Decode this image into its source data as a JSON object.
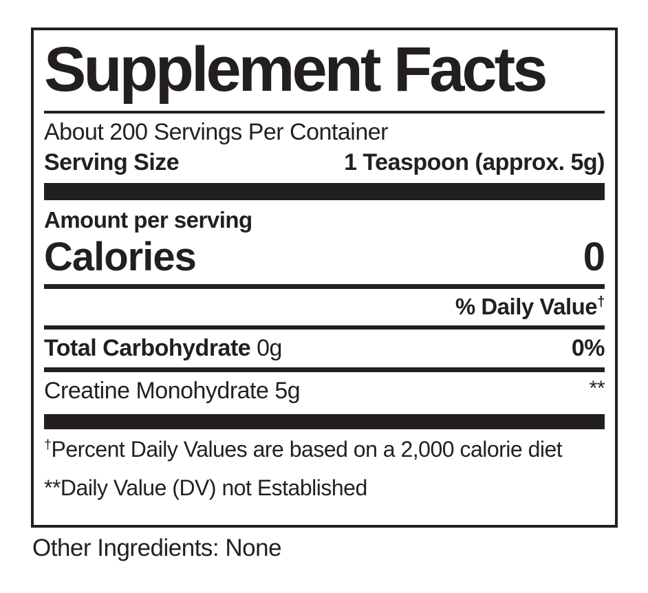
{
  "label": {
    "title": "Supplement Facts",
    "servings_per_container": "About 200 Servings Per Container",
    "serving_size": {
      "label": "Serving Size",
      "value": "1 Teaspoon (approx. 5g)"
    },
    "amount_per_serving_label": "Amount per serving",
    "calories": {
      "label": "Calories",
      "value": "0"
    },
    "daily_value_header": {
      "text": "% Daily Value",
      "symbol": "†"
    },
    "nutrient_rows": [
      {
        "name": "Total Carbohydrate",
        "amount": "0g",
        "daily_value": "0%"
      },
      {
        "name": "Creatine Monohydrate",
        "amount": "5g",
        "daily_value": "**"
      }
    ],
    "footnotes": [
      {
        "symbol": "†",
        "text": "Percent Daily Values are based on a 2,000 calorie diet"
      },
      {
        "symbol": "**",
        "text": "Daily Value (DV) not Established"
      }
    ],
    "other_ingredients": "Other Ingredients: None"
  },
  "colors": {
    "ink": "#231f20",
    "background": "#ffffff"
  }
}
